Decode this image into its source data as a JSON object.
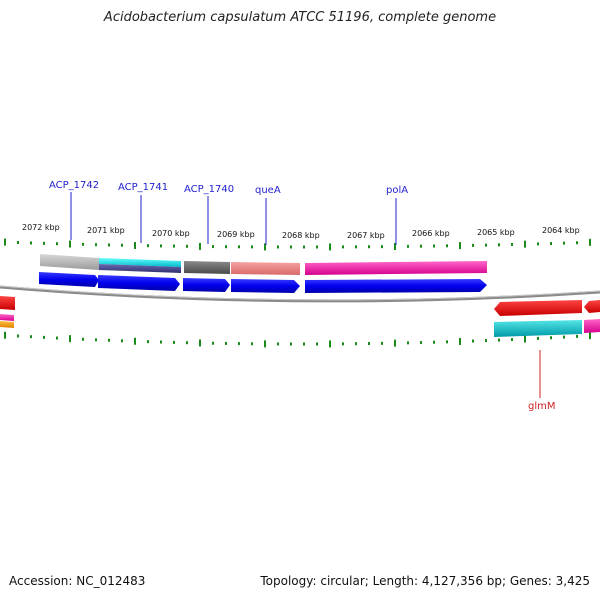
{
  "title": "Acidobacterium capsulatum ATCC 51196, complete genome",
  "accession": "Accession: NC_012483",
  "summary": "Topology: circular; Length: 4,127,356 bp; Genes: 3,425",
  "colors": {
    "tick": "#1a8a1a",
    "gene_label": "#2222cc",
    "reverse_label": "#cc2222",
    "backbone": "#888888"
  },
  "scale_labels": [
    "2072 kbp",
    "2071 kbp",
    "2070 kbp",
    "2069 kbp",
    "2068 kbp",
    "2067 kbp",
    "2066 kbp",
    "2065 kbp",
    "2064 kbp"
  ],
  "forward_labels": [
    "ACP_1742",
    "ACP_1741",
    "ACP_1740",
    "queA",
    "polA"
  ],
  "reverse_labels": [
    "glmM"
  ]
}
